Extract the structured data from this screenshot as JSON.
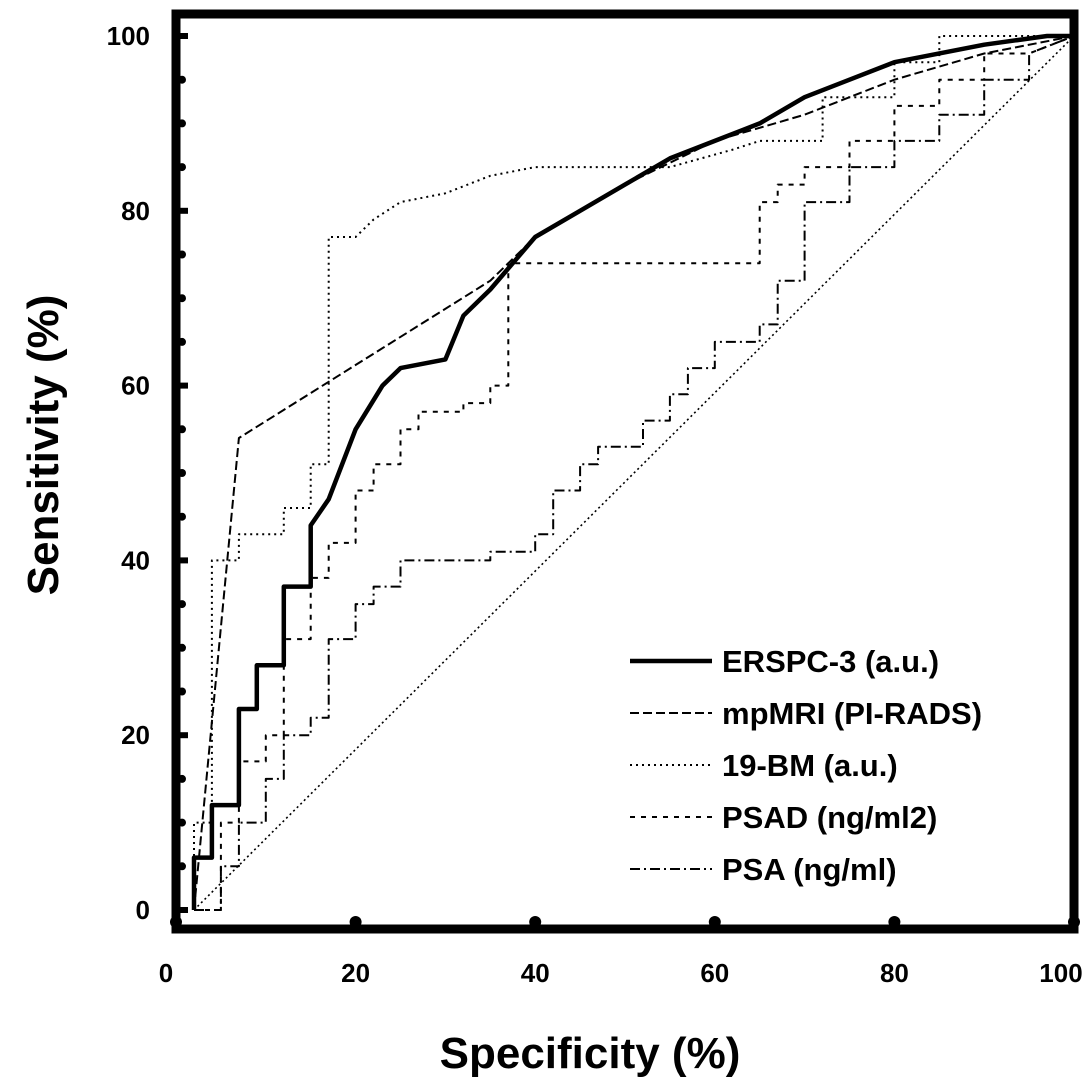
{
  "chart_data": {
    "type": "line",
    "xlabel": "Specificity (%)",
    "ylabel": "Sensitivity (%)",
    "xlim": [
      0,
      100
    ],
    "ylim": [
      0,
      100
    ],
    "x_ticks": [
      "0",
      "20",
      "40",
      "60",
      "80",
      "100"
    ],
    "y_ticks": [
      "0",
      "20",
      "40",
      "60",
      "80",
      "100"
    ],
    "legend_position": "bottom-right",
    "series": [
      {
        "name": "ERSPC-3 (a.u.)",
        "style": "solid-thick",
        "color": "#000000",
        "points": [
          [
            2,
            0
          ],
          [
            2,
            6
          ],
          [
            4,
            6
          ],
          [
            4,
            12
          ],
          [
            7,
            12
          ],
          [
            7,
            23
          ],
          [
            9,
            23
          ],
          [
            9,
            28
          ],
          [
            12,
            28
          ],
          [
            12,
            37
          ],
          [
            15,
            37
          ],
          [
            15,
            44
          ],
          [
            17,
            47
          ],
          [
            20,
            55
          ],
          [
            23,
            60
          ],
          [
            25,
            62
          ],
          [
            30,
            63
          ],
          [
            32,
            68
          ],
          [
            35,
            71
          ],
          [
            40,
            77
          ],
          [
            45,
            80
          ],
          [
            50,
            83
          ],
          [
            55,
            86
          ],
          [
            60,
            88
          ],
          [
            65,
            90
          ],
          [
            70,
            93
          ],
          [
            75,
            95
          ],
          [
            80,
            97
          ],
          [
            90,
            99
          ],
          [
            97,
            100
          ],
          [
            100,
            100
          ]
        ]
      },
      {
        "name": "mpMRI (PI-RADS)",
        "style": "dashed",
        "color": "#000000",
        "points": [
          [
            2,
            0
          ],
          [
            7,
            54
          ],
          [
            35,
            72
          ],
          [
            40,
            77
          ],
          [
            50,
            83
          ],
          [
            60,
            88
          ],
          [
            70,
            91
          ],
          [
            80,
            95
          ],
          [
            90,
            98
          ],
          [
            100,
            100
          ]
        ]
      },
      {
        "name": "19-BM (a.u.)",
        "style": "dotted",
        "color": "#000000",
        "points": [
          [
            2,
            0
          ],
          [
            2,
            10
          ],
          [
            4,
            10
          ],
          [
            4,
            40
          ],
          [
            7,
            40
          ],
          [
            7,
            43
          ],
          [
            12,
            43
          ],
          [
            12,
            46
          ],
          [
            15,
            46
          ],
          [
            15,
            51
          ],
          [
            17,
            51
          ],
          [
            17,
            77
          ],
          [
            20,
            77
          ],
          [
            22,
            79
          ],
          [
            25,
            81
          ],
          [
            30,
            82
          ],
          [
            35,
            84
          ],
          [
            40,
            85
          ],
          [
            55,
            85
          ],
          [
            62,
            87
          ],
          [
            65,
            88
          ],
          [
            72,
            88
          ],
          [
            72,
            93
          ],
          [
            80,
            93
          ],
          [
            80,
            97
          ],
          [
            85,
            97
          ],
          [
            85,
            100
          ],
          [
            100,
            100
          ]
        ]
      },
      {
        "name": "PSAD (ng/ml2)",
        "style": "dashed-sparse",
        "color": "#000000",
        "points": [
          [
            2,
            0
          ],
          [
            5,
            0
          ],
          [
            5,
            10
          ],
          [
            7,
            10
          ],
          [
            7,
            17
          ],
          [
            10,
            17
          ],
          [
            10,
            20
          ],
          [
            12,
            20
          ],
          [
            12,
            31
          ],
          [
            15,
            31
          ],
          [
            15,
            38
          ],
          [
            17,
            38
          ],
          [
            17,
            42
          ],
          [
            20,
            42
          ],
          [
            20,
            48
          ],
          [
            22,
            48
          ],
          [
            22,
            51
          ],
          [
            25,
            51
          ],
          [
            25,
            55
          ],
          [
            27,
            55
          ],
          [
            27,
            57
          ],
          [
            32,
            57
          ],
          [
            32,
            58
          ],
          [
            35,
            58
          ],
          [
            35,
            60
          ],
          [
            37,
            60
          ],
          [
            37,
            74
          ],
          [
            45,
            74
          ],
          [
            65,
            74
          ],
          [
            65,
            81
          ],
          [
            67,
            81
          ],
          [
            67,
            83
          ],
          [
            70,
            83
          ],
          [
            70,
            85
          ],
          [
            75,
            85
          ],
          [
            75,
            88
          ],
          [
            80,
            88
          ],
          [
            80,
            92
          ],
          [
            85,
            92
          ],
          [
            85,
            95
          ],
          [
            90,
            95
          ],
          [
            90,
            98
          ],
          [
            95,
            98
          ],
          [
            100,
            100
          ]
        ]
      },
      {
        "name": "PSA (ng/ml)",
        "style": "dash-dot",
        "color": "#000000",
        "points": [
          [
            2,
            0
          ],
          [
            5,
            0
          ],
          [
            5,
            5
          ],
          [
            7,
            5
          ],
          [
            7,
            10
          ],
          [
            10,
            10
          ],
          [
            10,
            15
          ],
          [
            12,
            15
          ],
          [
            12,
            20
          ],
          [
            15,
            20
          ],
          [
            15,
            22
          ],
          [
            17,
            22
          ],
          [
            17,
            31
          ],
          [
            20,
            31
          ],
          [
            20,
            35
          ],
          [
            22,
            35
          ],
          [
            22,
            37
          ],
          [
            25,
            37
          ],
          [
            25,
            40
          ],
          [
            35,
            40
          ],
          [
            35,
            41
          ],
          [
            40,
            41
          ],
          [
            40,
            43
          ],
          [
            42,
            43
          ],
          [
            42,
            48
          ],
          [
            45,
            48
          ],
          [
            45,
            51
          ],
          [
            47,
            51
          ],
          [
            47,
            53
          ],
          [
            52,
            53
          ],
          [
            52,
            56
          ],
          [
            55,
            56
          ],
          [
            55,
            59
          ],
          [
            57,
            59
          ],
          [
            57,
            62
          ],
          [
            60,
            62
          ],
          [
            60,
            65
          ],
          [
            65,
            65
          ],
          [
            65,
            67
          ],
          [
            67,
            67
          ],
          [
            67,
            72
          ],
          [
            70,
            72
          ],
          [
            70,
            81
          ],
          [
            75,
            81
          ],
          [
            75,
            85
          ],
          [
            80,
            85
          ],
          [
            80,
            88
          ],
          [
            85,
            88
          ],
          [
            85,
            91
          ],
          [
            90,
            91
          ],
          [
            90,
            95
          ],
          [
            95,
            95
          ],
          [
            95,
            98
          ],
          [
            100,
            100
          ]
        ]
      }
    ],
    "reference_line": [
      [
        2,
        0
      ],
      [
        100,
        100
      ]
    ]
  }
}
